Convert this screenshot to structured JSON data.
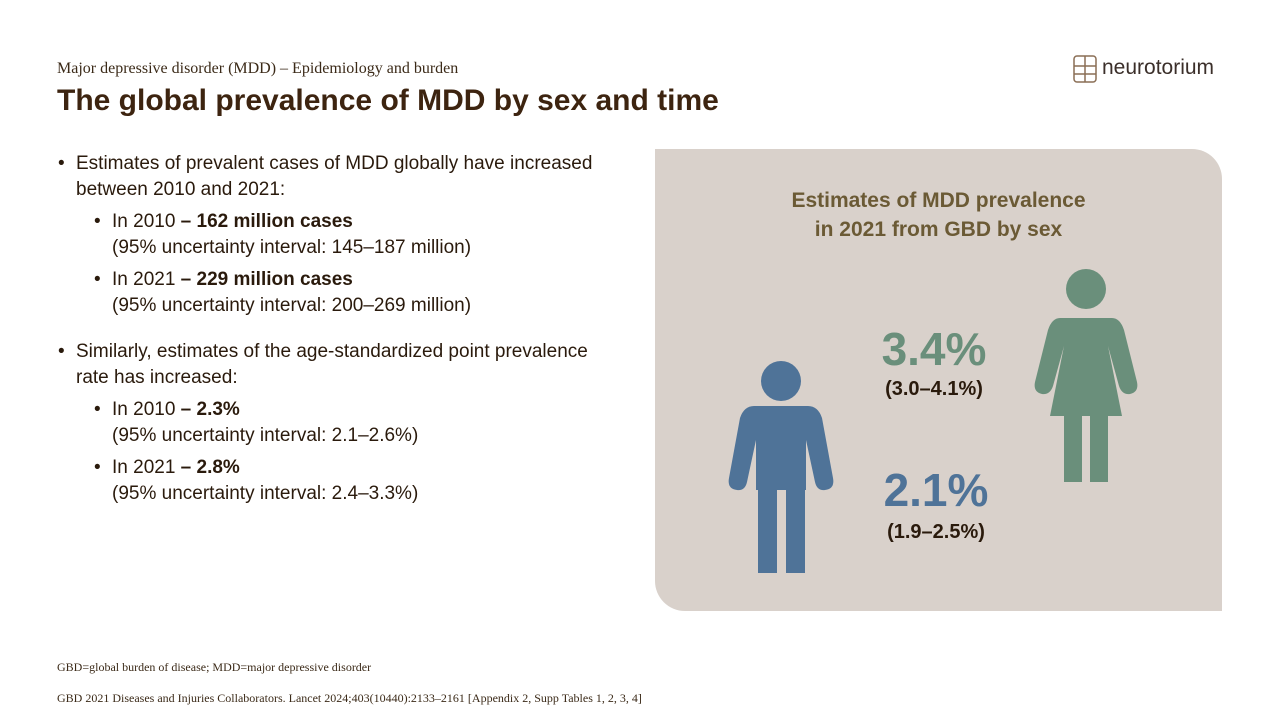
{
  "header": {
    "subtitle": "Major depressive disorder (MDD) – Epidemiology and burden",
    "title": "The global prevalence of MDD by sex and time",
    "logo": "neurotorium"
  },
  "bullets": [
    {
      "text": "Estimates of prevalent cases of MDD globally have increased between 2010 and 2021:",
      "items": [
        {
          "lead": "In 2010 ",
          "bold": "– 162 million cases",
          "detail": "(95% uncertainty interval: 145–187 million)"
        },
        {
          "lead": "In 2021 ",
          "bold": "– 229 million cases",
          "detail": "(95% uncertainty interval: 200–269 million)"
        }
      ]
    },
    {
      "text": "Similarly, estimates of the age-standardized point prevalence rate has increased:",
      "items": [
        {
          "lead": "In 2010 ",
          "bold": "– 2.3%",
          "detail": "(95% uncertainty interval: 2.1–2.6%)"
        },
        {
          "lead": "In 2021 ",
          "bold": "– 2.8%",
          "detail": "(95% uncertainty interval: 2.4–3.3%)"
        }
      ]
    }
  ],
  "panel": {
    "title_lines": [
      "Estimates of MDD prevalence",
      "in 2021 from GBD by sex"
    ],
    "female": {
      "value": "3.4%",
      "interval": "(3.0–4.1%)"
    },
    "male": {
      "value": "2.1%",
      "interval": "(1.9–2.5%)"
    }
  },
  "footnotes": [
    "GBD=global burden of disease; MDD=major depressive disorder",
    "GBD 2021 Diseases and Injuries Collaborators. Lancet 2024;403(10440):2133–2161 [Appendix 2, Supp Tables 1, 2, 3, 4]"
  ]
}
